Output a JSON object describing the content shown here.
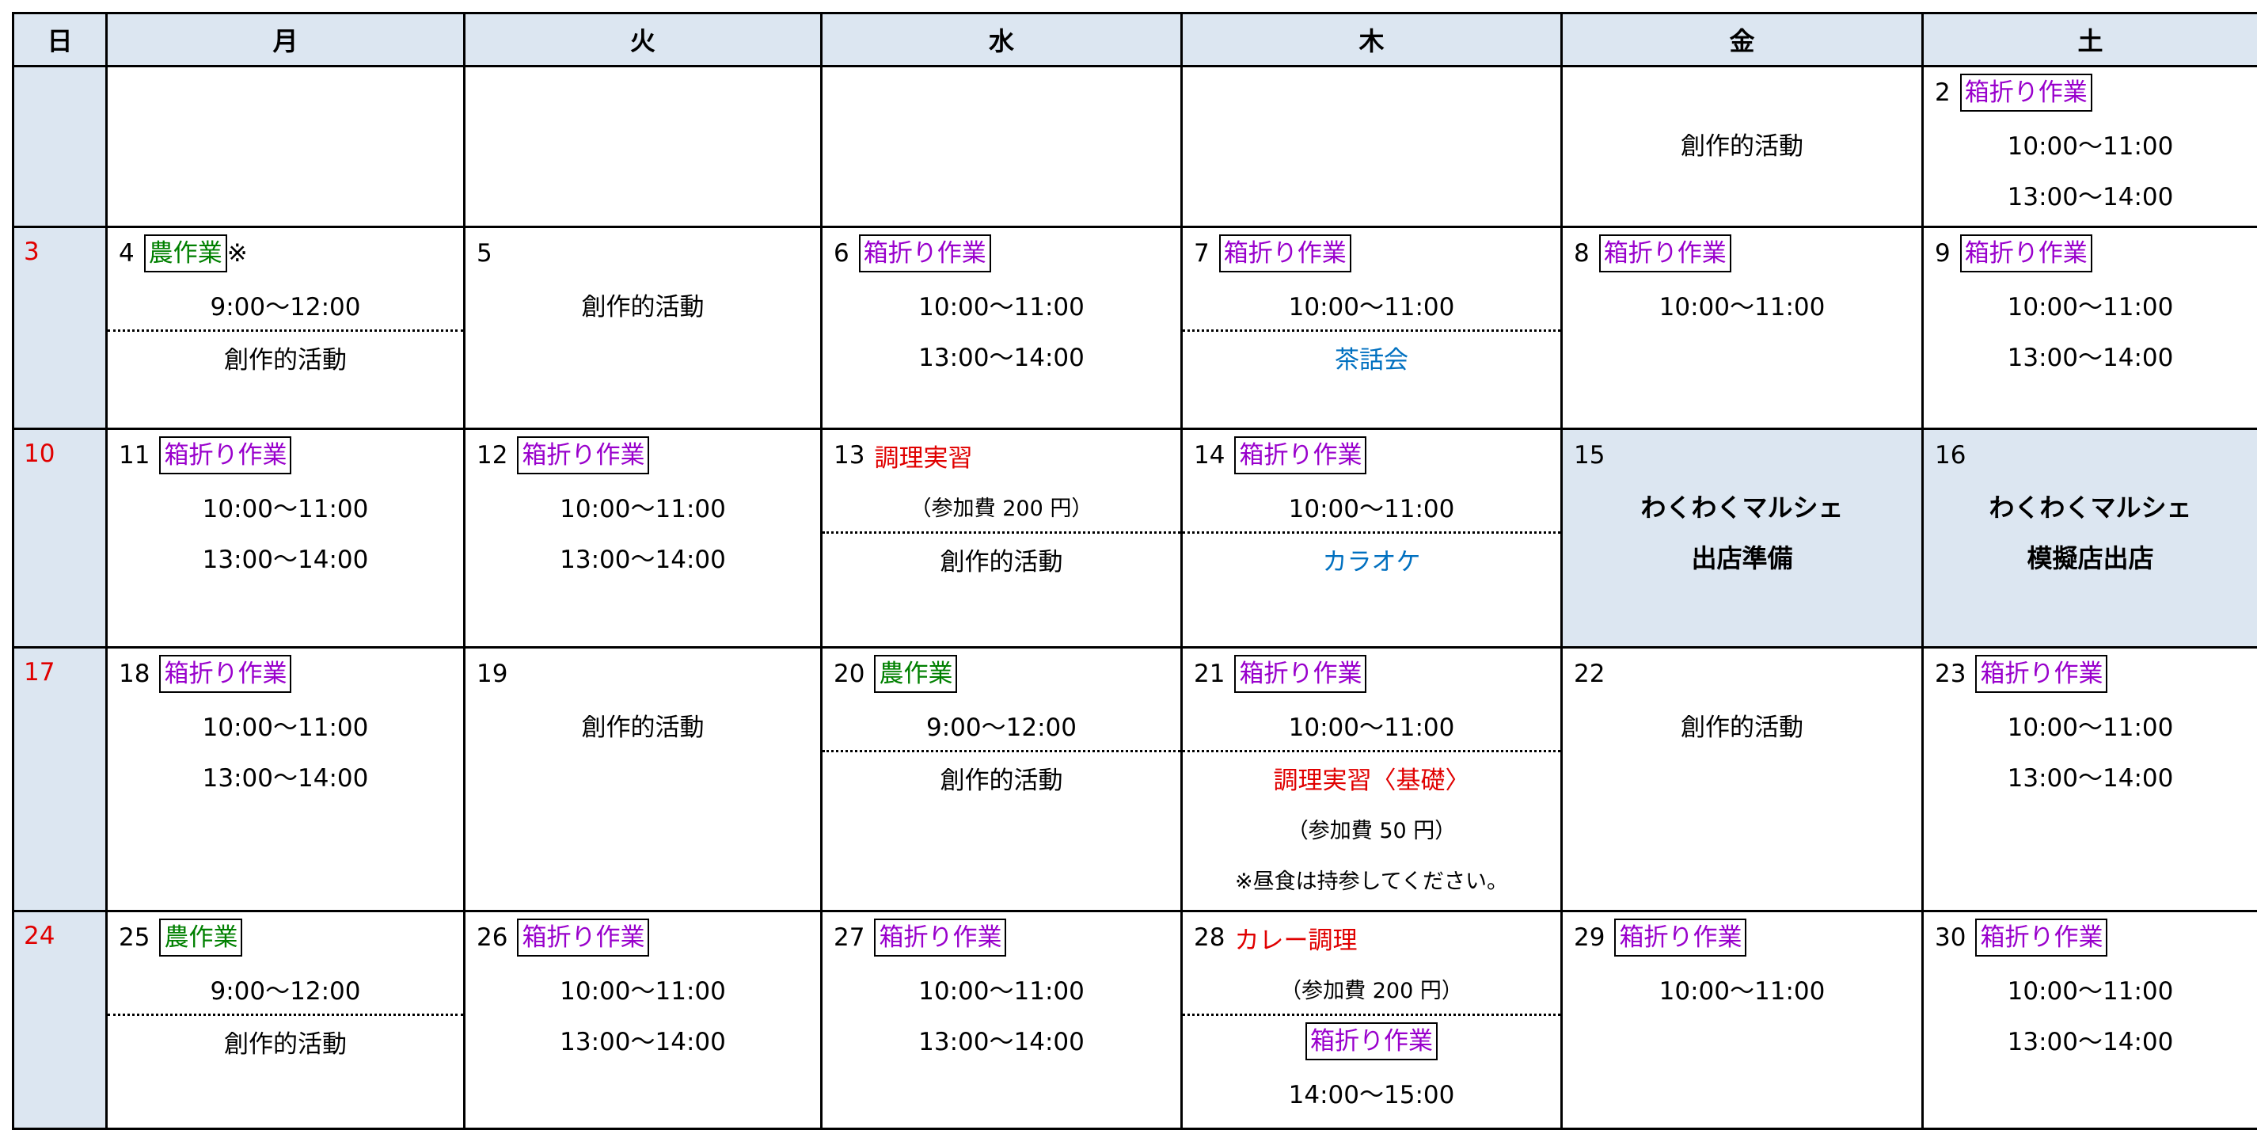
{
  "header": {
    "days": [
      "日",
      "月",
      "火",
      "水",
      "木",
      "金",
      "土"
    ]
  },
  "weeks": [
    [
      {},
      {},
      {},
      {},
      {},
      {
        "body": [
          {
            "text": "創作的活動",
            "kind": "plain"
          }
        ]
      },
      {
        "day": "2",
        "head": {
          "text": "箱折り作業",
          "kind": "tag-purple"
        },
        "body": [
          {
            "text": "10:00～11:00",
            "kind": "plain"
          },
          {
            "text": "13:00～14:00",
            "kind": "plain"
          }
        ]
      }
    ],
    [
      {
        "day": "3"
      },
      {
        "day": "4",
        "head": {
          "text": "農作業",
          "kind": "tag-green"
        },
        "head_note": "※",
        "body": [
          {
            "text": "9:00～12:00",
            "kind": "plain"
          },
          {
            "kind": "rule"
          },
          {
            "text": "創作的活動",
            "kind": "plain"
          }
        ]
      },
      {
        "day": "5",
        "body": [
          {
            "text": "創作的活動",
            "kind": "plain"
          }
        ]
      },
      {
        "day": "6",
        "head": {
          "text": "箱折り作業",
          "kind": "tag-purple"
        },
        "body": [
          {
            "text": "10:00～11:00",
            "kind": "plain"
          },
          {
            "text": "13:00～14:00",
            "kind": "plain"
          }
        ]
      },
      {
        "day": "7",
        "head": {
          "text": "箱折り作業",
          "kind": "tag-purple"
        },
        "body": [
          {
            "text": "10:00～11:00",
            "kind": "plain"
          },
          {
            "kind": "rule"
          },
          {
            "text": "茶話会",
            "kind": "blue"
          }
        ]
      },
      {
        "day": "8",
        "head": {
          "text": "箱折り作業",
          "kind": "tag-purple"
        },
        "body": [
          {
            "text": "10:00～11:00",
            "kind": "plain"
          }
        ]
      },
      {
        "day": "9",
        "head": {
          "text": "箱折り作業",
          "kind": "tag-purple"
        },
        "body": [
          {
            "text": "10:00～11:00",
            "kind": "plain"
          },
          {
            "text": "13:00～14:00",
            "kind": "plain"
          }
        ]
      }
    ],
    [
      {
        "day": "10"
      },
      {
        "day": "11",
        "head": {
          "text": "箱折り作業",
          "kind": "tag-purple"
        },
        "body": [
          {
            "text": "10:00～11:00",
            "kind": "plain"
          },
          {
            "text": "13:00～14:00",
            "kind": "plain"
          }
        ]
      },
      {
        "day": "12",
        "head": {
          "text": "箱折り作業",
          "kind": "tag-purple"
        },
        "body": [
          {
            "text": "10:00～11:00",
            "kind": "plain"
          },
          {
            "text": "13:00～14:00",
            "kind": "plain"
          }
        ]
      },
      {
        "day": "13",
        "head": {
          "text": "調理実習",
          "kind": "red"
        },
        "body": [
          {
            "text": "（参加費 200 円）",
            "kind": "small"
          },
          {
            "kind": "rule"
          },
          {
            "text": "創作的活動",
            "kind": "plain"
          }
        ]
      },
      {
        "day": "14",
        "head": {
          "text": "箱折り作業",
          "kind": "tag-purple"
        },
        "body": [
          {
            "text": "10:00～11:00",
            "kind": "plain"
          },
          {
            "kind": "rule"
          },
          {
            "text": "カラオケ",
            "kind": "blue"
          }
        ]
      },
      {
        "day": "15",
        "shade": true,
        "body": [
          {
            "text": "わくわくマルシェ",
            "kind": "bold"
          },
          {
            "text": "出店準備",
            "kind": "bold"
          }
        ]
      },
      {
        "day": "16",
        "shade": true,
        "body": [
          {
            "text": "わくわくマルシェ",
            "kind": "bold"
          },
          {
            "text": "模擬店出店",
            "kind": "bold"
          }
        ]
      }
    ],
    [
      {
        "day": "17"
      },
      {
        "day": "18",
        "head": {
          "text": "箱折り作業",
          "kind": "tag-purple"
        },
        "body": [
          {
            "text": "10:00～11:00",
            "kind": "plain"
          },
          {
            "text": "13:00～14:00",
            "kind": "plain"
          }
        ]
      },
      {
        "day": "19",
        "body": [
          {
            "text": "創作的活動",
            "kind": "plain"
          }
        ]
      },
      {
        "day": "20",
        "head": {
          "text": "農作業",
          "kind": "tag-green"
        },
        "body": [
          {
            "text": "9:00～12:00",
            "kind": "plain"
          },
          {
            "kind": "rule"
          },
          {
            "text": "創作的活動",
            "kind": "plain"
          }
        ]
      },
      {
        "day": "21",
        "head": {
          "text": "箱折り作業",
          "kind": "tag-purple"
        },
        "body": [
          {
            "text": "10:00～11:00",
            "kind": "plain"
          },
          {
            "kind": "rule"
          },
          {
            "text": "調理実習〈基礎〉",
            "kind": "red"
          },
          {
            "text": "（参加費 50 円）",
            "kind": "small"
          },
          {
            "text": "※昼食は持参してください。",
            "kind": "small"
          }
        ]
      },
      {
        "day": "22",
        "body": [
          {
            "text": "創作的活動",
            "kind": "plain"
          }
        ]
      },
      {
        "day": "23",
        "head": {
          "text": "箱折り作業",
          "kind": "tag-purple"
        },
        "body": [
          {
            "text": "10:00～11:00",
            "kind": "plain"
          },
          {
            "text": "13:00～14:00",
            "kind": "plain"
          }
        ]
      }
    ],
    [
      {
        "day": "24"
      },
      {
        "day": "25",
        "head": {
          "text": "農作業",
          "kind": "tag-green"
        },
        "body": [
          {
            "text": "9:00～12:00",
            "kind": "plain"
          },
          {
            "kind": "rule"
          },
          {
            "text": "創作的活動",
            "kind": "plain"
          }
        ]
      },
      {
        "day": "26",
        "head": {
          "text": "箱折り作業",
          "kind": "tag-purple"
        },
        "body": [
          {
            "text": "10:00～11:00",
            "kind": "plain"
          },
          {
            "text": "13:00～14:00",
            "kind": "plain"
          }
        ]
      },
      {
        "day": "27",
        "head": {
          "text": "箱折り作業",
          "kind": "tag-purple"
        },
        "body": [
          {
            "text": "10:00～11:00",
            "kind": "plain"
          },
          {
            "text": "13:00～14:00",
            "kind": "plain"
          }
        ]
      },
      {
        "day": "28",
        "head": {
          "text": "カレー調理",
          "kind": "red"
        },
        "body": [
          {
            "text": "（参加費 200 円）",
            "kind": "small"
          },
          {
            "kind": "rule"
          },
          {
            "text": "箱折り作業",
            "kind": "tag-purple"
          },
          {
            "text": "14:00～15:00",
            "kind": "plain"
          }
        ]
      },
      {
        "day": "29",
        "head": {
          "text": "箱折り作業",
          "kind": "tag-purple"
        },
        "body": [
          {
            "text": "10:00～11:00",
            "kind": "plain"
          }
        ]
      },
      {
        "day": "30",
        "head": {
          "text": "箱折り作業",
          "kind": "tag-purple"
        },
        "body": [
          {
            "text": "10:00～11:00",
            "kind": "plain"
          },
          {
            "text": "13:00～14:00",
            "kind": "plain"
          }
        ]
      }
    ]
  ]
}
